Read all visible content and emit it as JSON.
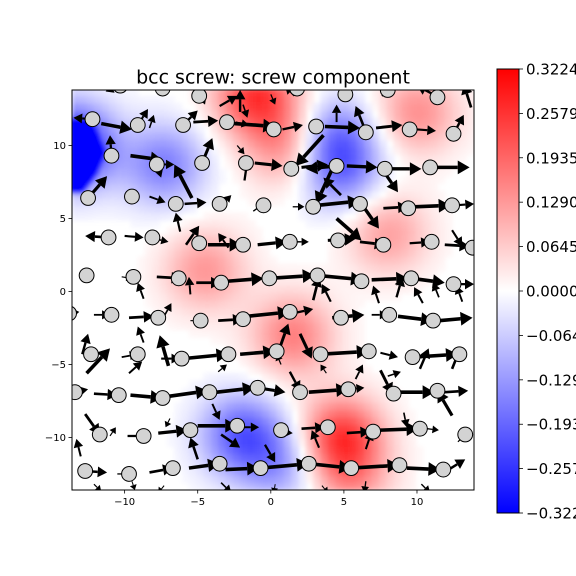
{
  "chart_data": {
    "type": "heatmap",
    "title": "bcc screw: screw component",
    "xlabel": "",
    "ylabel": "",
    "xlim": [
      -13.6,
      13.9
    ],
    "ylim": [
      -13.6,
      13.8
    ],
    "x_ticks": [
      -10,
      -5,
      0,
      5,
      10
    ],
    "x_tick_labels": [
      "−10",
      "−5",
      "0",
      "5",
      "10"
    ],
    "y_ticks": [
      -10,
      -5,
      0,
      5,
      10
    ],
    "y_tick_labels": [
      "−10",
      "−5",
      "0",
      "5",
      "10"
    ],
    "grid": false,
    "colormap": "bwr",
    "colors": {
      "negative": "#0000ff",
      "zero": "#ffffff",
      "positive": "#ff0000",
      "atom_fill": "#d3d3d3",
      "atom_edge": "#000000",
      "arrow": "#000000"
    },
    "colorbar": {
      "vmin": -0.3224,
      "vmax": 0.3224,
      "ticks": [
        0.3224,
        0.2579,
        0.1935,
        0.129,
        0.0645,
        0.0,
        -0.0645,
        -0.129,
        -0.1935,
        -0.2579,
        -0.3224
      ],
      "tick_labels": [
        "0.3224",
        "0.2579",
        "0.1935",
        "0.1290",
        "0.0645",
        "0.0000",
        "−0.0645",
        "−0.1290",
        "−0.1935",
        "−0.2579",
        "−0.3224"
      ]
    },
    "field_extrema": [
      {
        "x": -13.6,
        "y": 10.0,
        "value": -0.3224
      },
      {
        "x": -7.3,
        "y": 8.7,
        "value": -0.16
      },
      {
        "x": 4.3,
        "y": 10.5,
        "value": -0.17
      },
      {
        "x": 4.8,
        "y": 8.2,
        "value": -0.14
      },
      {
        "x": -2.0,
        "y": -9.8,
        "value": -0.2
      },
      {
        "x": 0.8,
        "y": -11.8,
        "value": -0.12
      },
      {
        "x": -1.0,
        "y": 13.5,
        "value": 0.25
      },
      {
        "x": -4.5,
        "y": 1.5,
        "value": 0.13
      },
      {
        "x": 4.8,
        "y": -10.0,
        "value": 0.25
      },
      {
        "x": 1.5,
        "y": -3.0,
        "value": 0.16
      },
      {
        "x": 1.2,
        "y": 10.0,
        "value": 0.15
      },
      {
        "x": 10.0,
        "y": 12.3,
        "value": 0.14
      },
      {
        "x": 8.0,
        "y": 4.0,
        "value": 0.12
      },
      {
        "x": 5.5,
        "y": -13.0,
        "value": 0.1
      }
    ],
    "atoms": [
      [
        -10.3,
        14.1
      ],
      [
        -7.4,
        13.9
      ],
      [
        -4.9,
        13.4
      ],
      [
        1.8,
        13.9
      ],
      [
        5.1,
        13.5
      ],
      [
        8.0,
        13.8
      ],
      [
        11.4,
        13.3
      ],
      [
        -12.2,
        11.8
      ],
      [
        -9.1,
        11.4
      ],
      [
        -6.0,
        11.4
      ],
      [
        -3.0,
        11.6
      ],
      [
        0.2,
        11.1
      ],
      [
        3.1,
        11.3
      ],
      [
        6.5,
        10.9
      ],
      [
        9.5,
        11.1
      ],
      [
        12.5,
        10.8
      ],
      [
        -10.9,
        9.3
      ],
      [
        -7.8,
        8.7
      ],
      [
        -4.7,
        8.8
      ],
      [
        -1.7,
        8.8
      ],
      [
        1.4,
        8.4
      ],
      [
        4.5,
        8.6
      ],
      [
        7.8,
        8.4
      ],
      [
        10.9,
        8.5
      ],
      [
        -12.5,
        6.4
      ],
      [
        -9.5,
        6.5
      ],
      [
        -6.5,
        6.0
      ],
      [
        -3.5,
        6.0
      ],
      [
        -0.5,
        5.9
      ],
      [
        2.9,
        5.8
      ],
      [
        6.1,
        6.0
      ],
      [
        9.4,
        5.7
      ],
      [
        12.4,
        5.9
      ],
      [
        -11.1,
        3.7
      ],
      [
        -8.1,
        3.7
      ],
      [
        -4.9,
        3.3
      ],
      [
        -1.9,
        3.2
      ],
      [
        1.3,
        3.4
      ],
      [
        4.6,
        3.5
      ],
      [
        7.7,
        3.2
      ],
      [
        11.0,
        3.4
      ],
      [
        13.8,
        3.0
      ],
      [
        -12.6,
        1.1
      ],
      [
        -9.4,
        1.0
      ],
      [
        -6.3,
        0.9
      ],
      [
        -3.4,
        0.6
      ],
      [
        -0.1,
        0.9
      ],
      [
        3.2,
        1.1
      ],
      [
        6.2,
        0.7
      ],
      [
        9.6,
        0.9
      ],
      [
        12.5,
        0.5
      ],
      [
        -13.8,
        -1.5
      ],
      [
        -10.9,
        -1.6
      ],
      [
        -7.7,
        -1.8
      ],
      [
        -4.8,
        -2.0
      ],
      [
        -1.9,
        -1.9
      ],
      [
        1.3,
        -1.4
      ],
      [
        4.8,
        -1.8
      ],
      [
        8.1,
        -1.6
      ],
      [
        11.1,
        -2.0
      ],
      [
        -12.3,
        -4.3
      ],
      [
        -9.1,
        -4.3
      ],
      [
        -6.1,
        -4.6
      ],
      [
        -2.9,
        -4.3
      ],
      [
        0.4,
        -4.1
      ],
      [
        3.4,
        -4.3
      ],
      [
        6.7,
        -4.1
      ],
      [
        9.7,
        -4.5
      ],
      [
        12.9,
        -4.3
      ],
      [
        -13.4,
        -6.9
      ],
      [
        -10.4,
        -7.1
      ],
      [
        -7.4,
        -7.3
      ],
      [
        -4.2,
        -6.9
      ],
      [
        -0.9,
        -6.6
      ],
      [
        2.0,
        -6.9
      ],
      [
        5.3,
        -6.7
      ],
      [
        8.4,
        -7.0
      ],
      [
        11.4,
        -6.8
      ],
      [
        -11.7,
        -9.8
      ],
      [
        -8.7,
        -9.9
      ],
      [
        -5.5,
        -9.5
      ],
      [
        -2.3,
        -9.2
      ],
      [
        0.7,
        -9.5
      ],
      [
        3.9,
        -9.3
      ],
      [
        7.0,
        -9.6
      ],
      [
        10.2,
        -9.4
      ],
      [
        13.3,
        -9.8
      ],
      [
        -12.7,
        -12.3
      ],
      [
        -9.7,
        -12.5
      ],
      [
        -6.7,
        -12.1
      ],
      [
        -3.5,
        -11.8
      ],
      [
        -0.7,
        -12.1
      ],
      [
        2.6,
        -11.8
      ],
      [
        5.5,
        -12.1
      ],
      [
        8.8,
        -11.9
      ],
      [
        11.8,
        -12.2
      ]
    ],
    "arrows": [
      [
        -10.3,
        14.1,
        -11.3,
        13.7
      ],
      [
        -5.0,
        14.1,
        -4.5,
        12.8
      ],
      [
        -3.5,
        12.7,
        -2.3,
        13.4
      ],
      [
        -2.1,
        12.3,
        -2.1,
        13.8
      ],
      [
        0.0,
        13.5,
        0.3,
        12.8
      ],
      [
        1.6,
        13.4,
        1.0,
        14.0
      ],
      [
        5.3,
        13.4,
        5.0,
        14.1
      ],
      [
        7.6,
        13.4,
        8.5,
        14.1
      ],
      [
        11.3,
        13.4,
        10.0,
        14.1
      ],
      [
        13.7,
        12.6,
        13.2,
        14.2
      ],
      [
        -12.2,
        11.8,
        -13.5,
        11.9
      ],
      [
        -11.6,
        11.5,
        -9.5,
        11.1
      ],
      [
        -9.1,
        11.4,
        -8.4,
        12.5
      ],
      [
        -8.3,
        11.2,
        -8.0,
        12.1
      ],
      [
        -6.0,
        11.4,
        -5.0,
        12.4
      ],
      [
        -5.3,
        11.6,
        -3.6,
        11.7
      ],
      [
        -2.4,
        11.6,
        -1.5,
        11.4
      ],
      [
        -2.5,
        11.5,
        0.3,
        11.3
      ],
      [
        0.8,
        11.1,
        2.2,
        11.4
      ],
      [
        3.7,
        11.3,
        6.1,
        11.2
      ],
      [
        6.4,
        11.2,
        5.8,
        12.7
      ],
      [
        7.2,
        11.2,
        9.0,
        11.4
      ],
      [
        10.0,
        11.1,
        11.3,
        11.0
      ],
      [
        12.5,
        10.8,
        13.2,
        12.1
      ],
      [
        -1.9,
        12.8,
        -1.6,
        11.9
      ],
      [
        -10.9,
        9.3,
        -11.0,
        10.7
      ],
      [
        -9.6,
        9.3,
        -7.4,
        9.0
      ],
      [
        -7.8,
        8.7,
        -6.6,
        8.7
      ],
      [
        -4.7,
        8.8,
        -4.0,
        10.5
      ],
      [
        -2.3,
        10.0,
        -1.8,
        9.4
      ],
      [
        -1.1,
        8.8,
        0.8,
        8.6
      ],
      [
        2.1,
        8.5,
        3.9,
        8.7
      ],
      [
        4.5,
        8.6,
        2.4,
        8.4
      ],
      [
        5.2,
        8.6,
        7.3,
        8.5
      ],
      [
        8.2,
        8.4,
        10.3,
        8.4
      ],
      [
        11.4,
        8.5,
        13.6,
        8.5
      ],
      [
        -1.8,
        7.6,
        -1.6,
        9.0
      ],
      [
        3.6,
        10.7,
        1.7,
        8.6
      ],
      [
        4.5,
        11.6,
        4.5,
        12.8
      ],
      [
        7.6,
        8.4,
        8.7,
        6.8
      ],
      [
        -7.8,
        8.7,
        -7.5,
        7.8
      ],
      [
        -12.5,
        6.4,
        -11.2,
        7.9
      ],
      [
        -9.9,
        6.4,
        -9.0,
        6.7
      ],
      [
        -8.3,
        6.5,
        -7.2,
        6.1
      ],
      [
        -5.9,
        6.0,
        -4.4,
        6.1
      ],
      [
        -3.3,
        6.0,
        -2.7,
        6.6
      ],
      [
        -1.2,
        5.5,
        -0.5,
        6.0
      ],
      [
        1.5,
        5.8,
        2.3,
        5.8
      ],
      [
        3.2,
        5.9,
        6.1,
        6.2
      ],
      [
        6.2,
        6.0,
        7.4,
        4.3
      ],
      [
        7.7,
        5.7,
        9.4,
        5.8
      ],
      [
        9.8,
        5.8,
        12.3,
        5.9
      ],
      [
        12.6,
        5.9,
        13.9,
        6.0
      ],
      [
        4.8,
        6.6,
        3.6,
        7.8
      ],
      [
        4.3,
        8.6,
        3.1,
        6.0
      ],
      [
        -5.4,
        6.4,
        -6.6,
        8.7
      ],
      [
        -11.1,
        3.7,
        -12.7,
        3.8
      ],
      [
        -10.0,
        3.8,
        -8.7,
        3.7
      ],
      [
        -7.9,
        3.6,
        -7.0,
        3.4
      ],
      [
        -5.8,
        3.2,
        -4.9,
        4.5
      ],
      [
        -4.3,
        3.2,
        -2.0,
        3.2
      ],
      [
        -0.9,
        3.2,
        1.1,
        3.4
      ],
      [
        1.7,
        3.4,
        2.6,
        3.4
      ],
      [
        3.9,
        3.5,
        5.8,
        3.6
      ],
      [
        6.1,
        3.4,
        7.8,
        3.2
      ],
      [
        9.5,
        3.3,
        10.9,
        3.4
      ],
      [
        11.9,
        3.2,
        13.6,
        3.1
      ],
      [
        -2.9,
        3.0,
        -3.6,
        4.0
      ],
      [
        -6.2,
        4.1,
        -6.5,
        5.4
      ],
      [
        4.5,
        5.0,
        6.2,
        3.5
      ],
      [
        12.4,
        4.2,
        13.1,
        3.1
      ],
      [
        -13.1,
        1.1,
        -12.6,
        1.5
      ],
      [
        -10.2,
        1.0,
        -9.5,
        0.9
      ],
      [
        -7.8,
        1.0,
        -6.1,
        0.9
      ],
      [
        -5.1,
        0.6,
        -3.4,
        0.6
      ],
      [
        -3.0,
        0.7,
        -0.5,
        0.9
      ],
      [
        -0.1,
        0.9,
        3.0,
        1.1
      ],
      [
        3.2,
        1.1,
        6.3,
        0.8
      ],
      [
        6.9,
        0.8,
        9.4,
        0.9
      ],
      [
        9.6,
        0.9,
        11.9,
        0.6
      ],
      [
        12.5,
        0.5,
        13.9,
        0.5
      ],
      [
        -8.7,
        -0.5,
        -9.1,
        0.6
      ],
      [
        -5.5,
        -0.2,
        -5.6,
        1.0
      ],
      [
        4.1,
        -0.7,
        3.5,
        0.5
      ],
      [
        10.4,
        -0.8,
        9.8,
        0.3
      ],
      [
        13.1,
        -0.7,
        12.7,
        0.4
      ],
      [
        -13.8,
        -1.5,
        -13.1,
        -1.4
      ],
      [
        -12.1,
        -1.6,
        -11.0,
        -1.6
      ],
      [
        -9.7,
        -1.8,
        -8.0,
        -1.7
      ],
      [
        -7.3,
        -1.7,
        -6.8,
        -0.8
      ],
      [
        -5.5,
        -2.0,
        -4.8,
        -2.0
      ],
      [
        -3.6,
        -2.0,
        -1.9,
        -1.9
      ],
      [
        -1.6,
        -1.7,
        1.3,
        -1.4
      ],
      [
        1.5,
        -1.5,
        2.9,
        -1.2
      ],
      [
        4.2,
        -1.8,
        6.4,
        -1.6
      ],
      [
        6.9,
        -1.6,
        8.0,
        -1.6
      ],
      [
        8.7,
        -1.7,
        11.1,
        -2.0
      ],
      [
        11.5,
        -2.0,
        13.8,
        -1.8
      ],
      [
        2.9,
        -0.6,
        3.3,
        1.0
      ],
      [
        7.4,
        -0.8,
        7.0,
        0.4
      ],
      [
        8.6,
        -0.4,
        9.0,
        1.0
      ],
      [
        11.5,
        -0.4,
        11.1,
        0.6
      ],
      [
        -12.9,
        -4.3,
        -12.5,
        -2.9
      ],
      [
        -10.2,
        -4.5,
        -9.1,
        -4.3
      ],
      [
        -7.5,
        -4.6,
        -6.2,
        -4.6
      ],
      [
        -6.0,
        -4.6,
        -2.9,
        -4.3
      ],
      [
        -2.1,
        -4.3,
        0.3,
        -4.1
      ],
      [
        0.6,
        -3.9,
        1.2,
        -2.2
      ],
      [
        2.0,
        -2.9,
        2.8,
        -4.6
      ],
      [
        3.4,
        -4.3,
        6.7,
        -4.1
      ],
      [
        7.5,
        -4.2,
        8.7,
        -4.5
      ],
      [
        9.7,
        -4.5,
        12.8,
        -4.3
      ],
      [
        -8.7,
        -3.5,
        -9.1,
        -2.4
      ],
      [
        -12.6,
        -5.6,
        -11.0,
        -3.9
      ],
      [
        -9.7,
        -5.6,
        -8.8,
        -4.8
      ],
      [
        -7.0,
        -5.1,
        -7.6,
        -3.0
      ],
      [
        -3.6,
        -5.5,
        -3.0,
        -5.0
      ],
      [
        0.7,
        -5.0,
        0.4,
        -4.3
      ],
      [
        3.8,
        -5.6,
        3.4,
        -5.0
      ],
      [
        5.8,
        -6.0,
        6.3,
        -5.0
      ],
      [
        8.0,
        -5.8,
        8.9,
        -5.5
      ],
      [
        10.2,
        -5.3,
        10.8,
        -3.9
      ],
      [
        12.4,
        -5.3,
        13.0,
        -3.8
      ],
      [
        -13.4,
        -6.9,
        -12.5,
        -6.7
      ],
      [
        -12.1,
        -7.0,
        -10.5,
        -7.1
      ],
      [
        -9.6,
        -7.1,
        -7.4,
        -7.3
      ],
      [
        -7.1,
        -7.2,
        -4.3,
        -6.8
      ],
      [
        -3.7,
        -6.9,
        -1.1,
        -6.6
      ],
      [
        -0.9,
        -6.6,
        1.0,
        -6.9
      ],
      [
        2.6,
        -6.9,
        5.3,
        -6.7
      ],
      [
        5.3,
        -6.7,
        6.4,
        -6.6
      ],
      [
        8.9,
        -6.9,
        11.2,
        -6.9
      ],
      [
        11.9,
        -6.9,
        13.5,
        -6.8
      ],
      [
        1.3,
        -5.5,
        2.0,
        -6.8
      ],
      [
        -4.0,
        -7.7,
        -3.5,
        -8.8
      ],
      [
        7.5,
        -5.4,
        8.3,
        -7.0
      ],
      [
        12.4,
        -8.5,
        11.4,
        -6.8
      ],
      [
        -12.7,
        -8.4,
        -11.7,
        -9.8
      ],
      [
        -11.0,
        -9.9,
        -10.6,
        -9.3
      ],
      [
        -9.8,
        -9.9,
        -8.4,
        -9.9
      ],
      [
        -7.7,
        -9.7,
        -5.7,
        -9.5
      ],
      [
        -5.0,
        -9.2,
        -2.3,
        -9.2
      ],
      [
        -2.0,
        -9.3,
        -0.8,
        -9.3
      ],
      [
        0.3,
        -9.6,
        1.5,
        -9.7
      ],
      [
        2.1,
        -9.4,
        3.7,
        -9.3
      ],
      [
        5.2,
        -9.7,
        6.8,
        -9.6
      ],
      [
        7.5,
        -9.5,
        10.1,
        -9.4
      ],
      [
        10.7,
        -9.4,
        11.5,
        -9.5
      ],
      [
        12.8,
        -10.3,
        13.3,
        -9.8
      ],
      [
        -6.9,
        -8.7,
        -7.2,
        -9.3
      ],
      [
        -5.0,
        -11.5,
        -5.5,
        -10.0
      ],
      [
        -3.4,
        -9.8,
        -2.1,
        -10.7
      ],
      [
        3.3,
        -10.7,
        2.8,
        -9.5
      ],
      [
        6.5,
        -10.8,
        6.9,
        -9.6
      ],
      [
        9.1,
        -8.3,
        9.3,
        -9.3
      ],
      [
        -0.4,
        -10.5,
        0.3,
        -11.7
      ],
      [
        -13.0,
        -11.3,
        -13.3,
        -10.1
      ],
      [
        -12.7,
        -12.3,
        -11.2,
        -12.4
      ],
      [
        -10.5,
        -12.5,
        -9.7,
        -12.5
      ],
      [
        -8.3,
        -12.4,
        -6.7,
        -12.1
      ],
      [
        -5.6,
        -12.1,
        -3.5,
        -11.8
      ],
      [
        -3.1,
        -12.2,
        -0.8,
        -12.1
      ],
      [
        -0.7,
        -12.1,
        2.6,
        -11.8
      ],
      [
        2.6,
        -11.8,
        5.5,
        -12.1
      ],
      [
        5.5,
        -12.1,
        8.8,
        -11.9
      ],
      [
        9.3,
        -12.1,
        11.6,
        -12.2
      ],
      [
        12.0,
        -12.3,
        13.3,
        -11.5
      ],
      [
        -12.1,
        -13.2,
        -11.6,
        -13.7
      ],
      [
        -9.5,
        -13.0,
        -9.3,
        -13.6
      ],
      [
        -3.4,
        -13.1,
        -2.7,
        -13.8
      ],
      [
        0.3,
        -13.2,
        0.2,
        -13.8
      ],
      [
        3.5,
        -13.3,
        3.9,
        -13.8
      ],
      [
        6.5,
        -13.0,
        6.4,
        -13.8
      ],
      [
        10.3,
        -13.2,
        10.9,
        -13.8
      ],
      [
        -7.3,
        -13.3,
        -7.7,
        -13.8
      ]
    ]
  }
}
